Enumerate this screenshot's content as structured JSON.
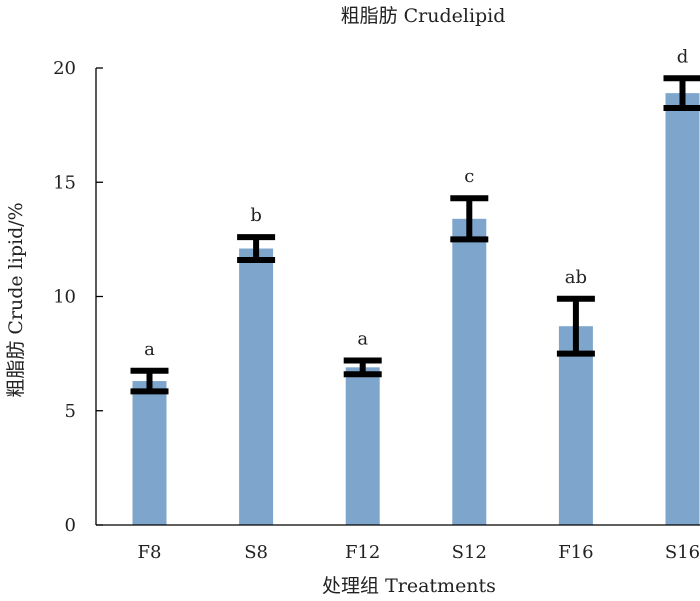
{
  "chart_data": {
    "type": "bar",
    "title": "粗脂肪 Crudelipid",
    "xlabel": "处理组  Treatments",
    "ylabel": "粗脂肪 Crude lipid/%",
    "categories": [
      "F8",
      "S8",
      "F12",
      "S12",
      "F16",
      "S16"
    ],
    "values": [
      6.3,
      12.1,
      6.9,
      13.4,
      8.7,
      18.9
    ],
    "errors": [
      0.45,
      0.5,
      0.3,
      0.9,
      1.2,
      0.65
    ],
    "significance": [
      "a",
      "b",
      "a",
      "c",
      "ab",
      "d"
    ],
    "ylim": [
      0,
      20
    ],
    "yticks": [
      "0",
      "5",
      "10",
      "15",
      "20"
    ],
    "grid": false,
    "bar_color": "#7ea6cd",
    "error_color": "#000000"
  }
}
